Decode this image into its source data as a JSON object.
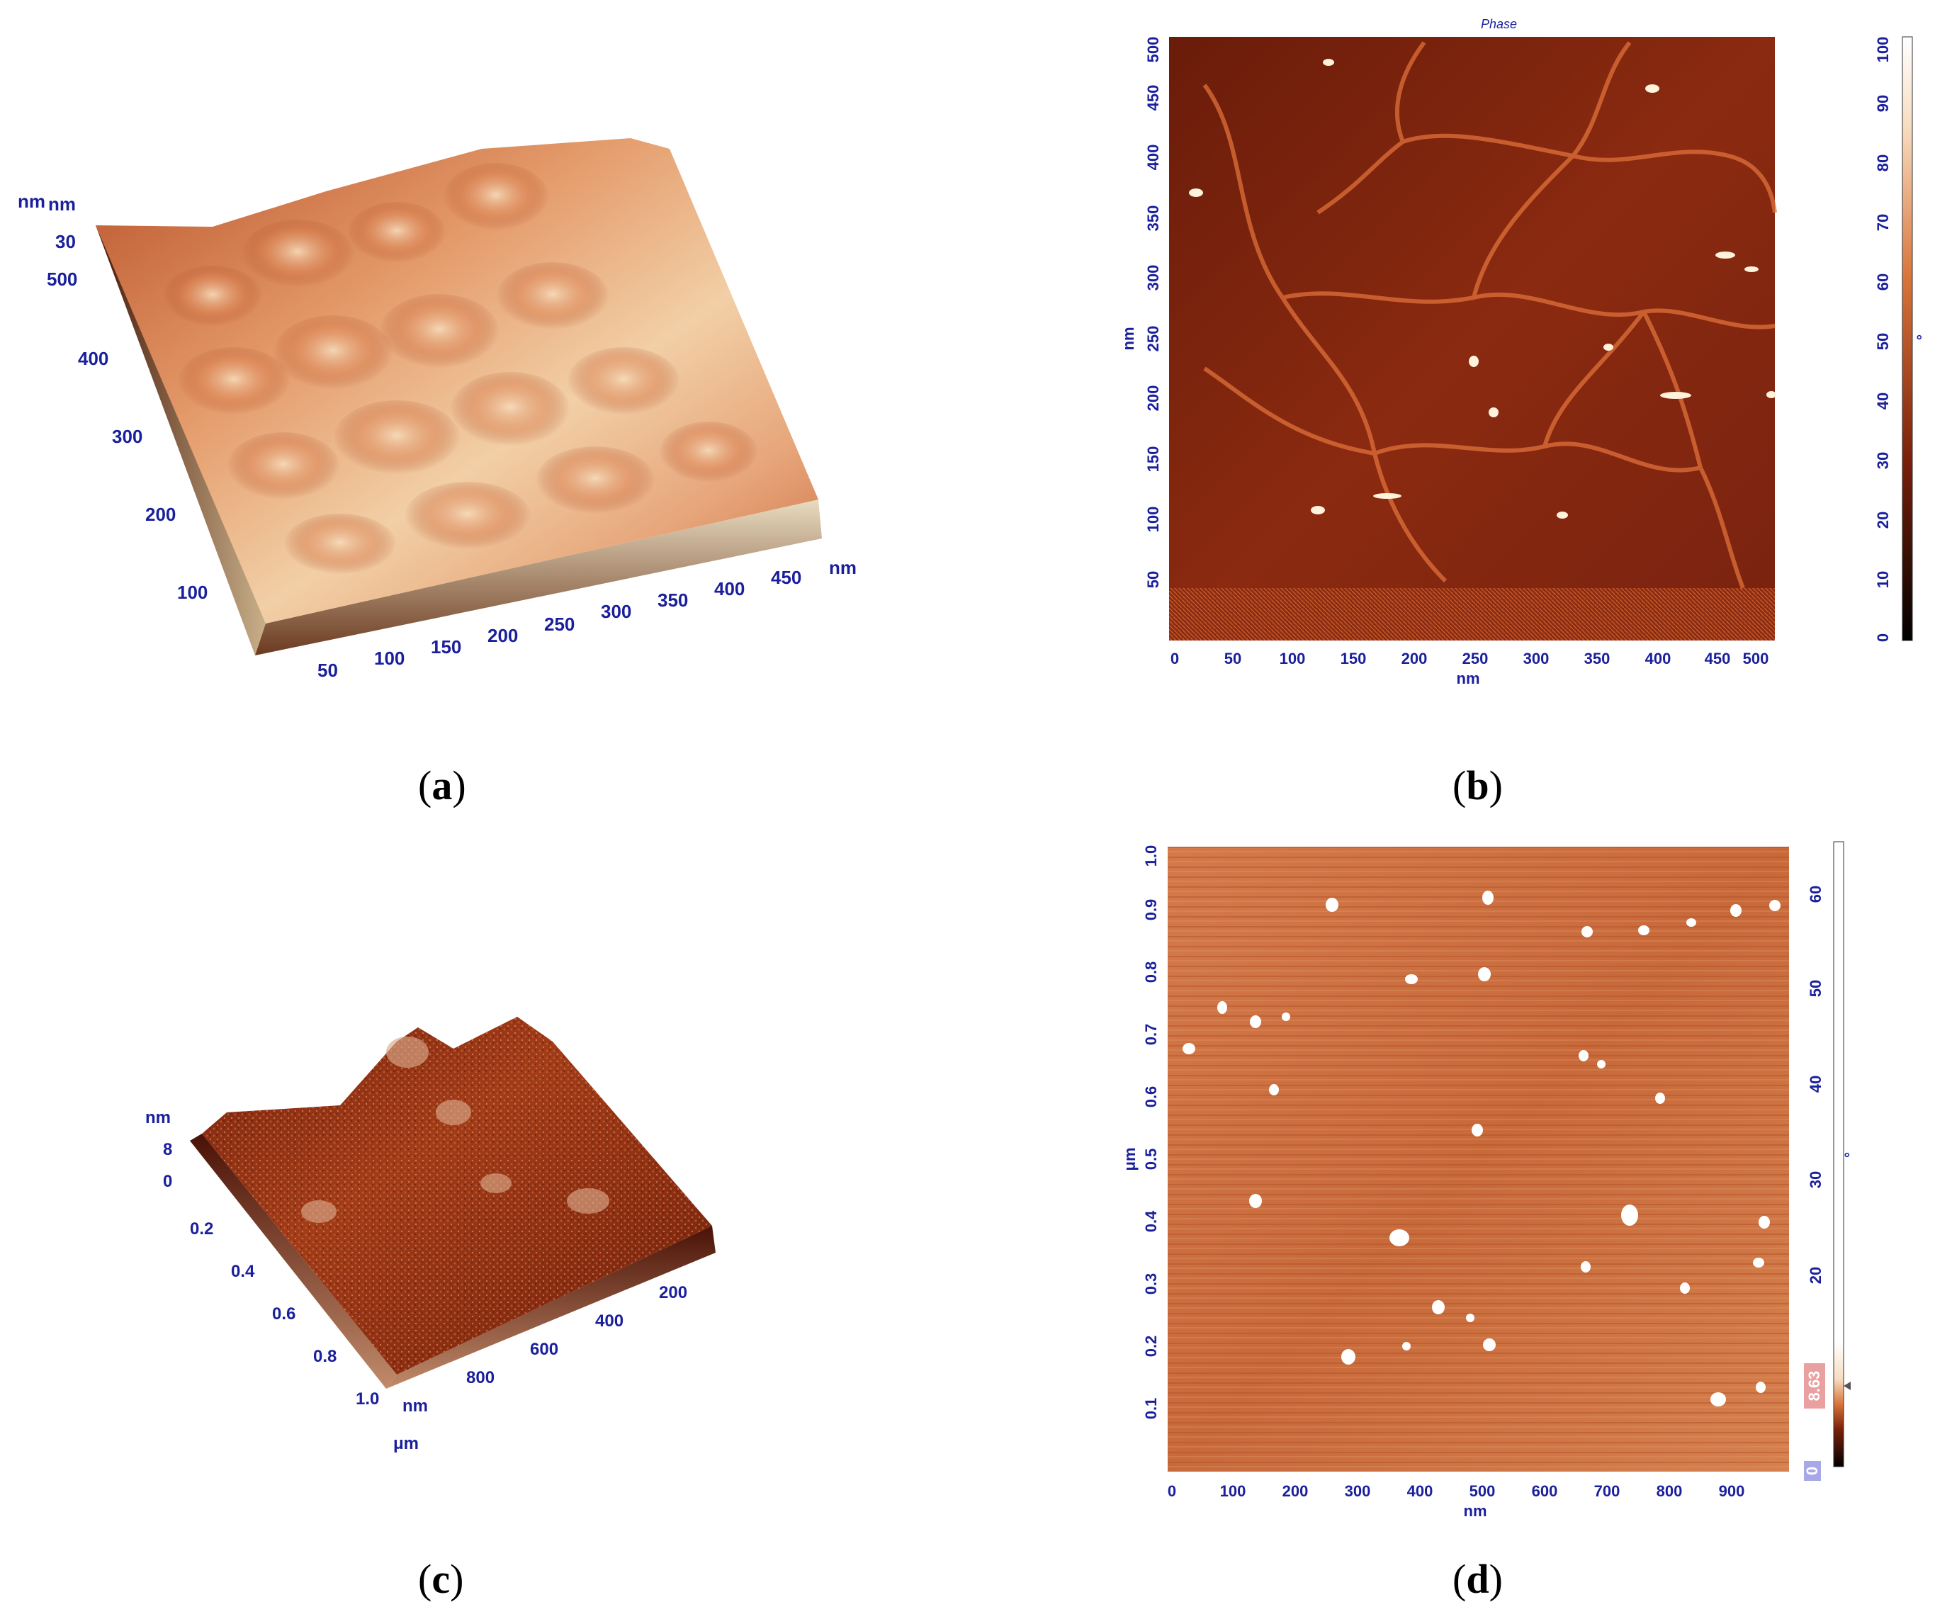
{
  "colors": {
    "tick": "#1a1f9c",
    "afm_dark": "#5a1505",
    "afm_mid": "#b8481e",
    "afm_light": "#f0c89c"
  },
  "panels": {
    "a": {
      "caption_letter": "a",
      "z_unit_labels": [
        "nm",
        "nm"
      ],
      "z_ticks": [
        "30",
        "500"
      ],
      "y_ticks": [
        "400",
        "300",
        "200",
        "100"
      ],
      "x_ticks": [
        "50",
        "100",
        "150",
        "200",
        "250",
        "300",
        "350",
        "400",
        "450"
      ],
      "x_unit": "nm"
    },
    "b": {
      "caption_letter": "b",
      "title": "Phase",
      "x_ticks": [
        "0",
        "50",
        "100",
        "150",
        "200",
        "250",
        "300",
        "350",
        "400",
        "450",
        "500"
      ],
      "x_unit": "nm",
      "y_ticks": [
        "50",
        "100",
        "150",
        "200",
        "250",
        "300",
        "350",
        "400",
        "450",
        "500"
      ],
      "y_unit": "nm",
      "scale_ticks": [
        "0",
        "10",
        "20",
        "30",
        "40",
        "50",
        "60",
        "70",
        "80",
        "90",
        "100"
      ],
      "scale_unit": "°"
    },
    "c": {
      "caption_letter": "c",
      "z_unit": "nm",
      "z_ticks": [
        "8",
        "0"
      ],
      "y_ticks": [
        "0.2",
        "0.4",
        "0.6",
        "0.8",
        "1.0"
      ],
      "y_unit": "μm",
      "x_ticks": [
        "800",
        "600",
        "400",
        "200"
      ],
      "x_unit": "nm"
    },
    "d": {
      "caption_letter": "d",
      "x_ticks": [
        "0",
        "100",
        "200",
        "300",
        "400",
        "500",
        "600",
        "700",
        "800",
        "900"
      ],
      "x_unit": "nm",
      "y_ticks": [
        "0.1",
        "0.2",
        "0.3",
        "0.4",
        "0.5",
        "0.6",
        "0.7",
        "0.8",
        "0.9",
        "1.0"
      ],
      "y_unit": "μm",
      "scale_ticks": [
        "20",
        "30",
        "40",
        "50",
        "60"
      ],
      "scale_unit": "°",
      "marker_value": "8.63",
      "marker_min": "0"
    }
  }
}
